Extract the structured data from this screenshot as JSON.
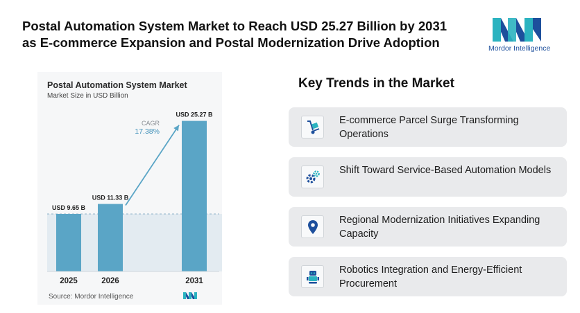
{
  "headline": {
    "line1": "Postal Automation System Market to Reach USD 25.27 Billion by 2031",
    "line2": "as E-commerce Expansion and Postal Modernization Drive Adoption"
  },
  "brand": {
    "name_part1": "Mordor",
    "name_part2": " Intelligence",
    "colors": {
      "teal": "#2bb3c0",
      "navy": "#1d4f9c"
    }
  },
  "chart": {
    "source": "Source: Mordor Intelligence",
    "cagr_label": "CAGR",
    "cagr_value": "17.38%"
  },
  "chart_data": {
    "type": "bar",
    "title": "Postal Automation System Market",
    "subtitle": "Market Size in USD Billion",
    "categories": [
      "2025",
      "2026",
      "2031"
    ],
    "values": [
      9.65,
      11.33,
      25.27
    ],
    "data_labels": [
      "USD 9.65 B",
      "USD 11.33 B",
      "USD 25.27 B"
    ],
    "ylim": [
      0,
      26.5
    ],
    "reference_line_value": 9.65,
    "bar_color": "#5aa5c6",
    "grid": false,
    "legend": "none"
  },
  "trends": {
    "title": "Key Trends in the Market",
    "items": [
      {
        "icon": "hand-truck-icon",
        "text": "E-commerce Parcel Surge Transforming Operations"
      },
      {
        "icon": "gears-icon",
        "text": "Shift Toward Service-Based Automation Models"
      },
      {
        "icon": "location-pin-icon",
        "text": "Regional Modernization Initiatives Expanding Capacity"
      },
      {
        "icon": "robot-icon",
        "text": "Robotics Integration and Energy-Efficient Procurement"
      }
    ]
  }
}
